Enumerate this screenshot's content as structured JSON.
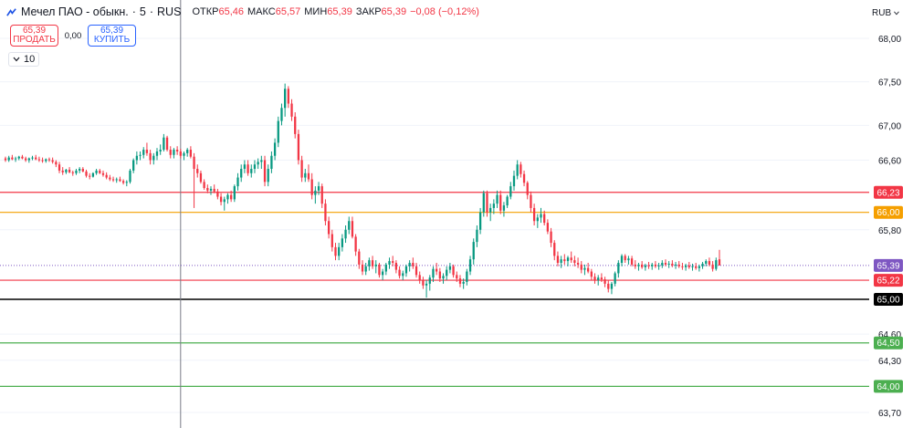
{
  "header": {
    "title": "Мечел ПАО - обыкн.",
    "interval": "5",
    "exchange": "RUS",
    "ohlc": [
      {
        "label": "ОТКР",
        "value": "65,46"
      },
      {
        "label": "МАКС",
        "value": "65,57"
      },
      {
        "label": "МИН",
        "value": "65,39"
      },
      {
        "label": "ЗАКР",
        "value": "65,39"
      },
      {
        "label": "",
        "value": "−0,08 (−0,12%)"
      }
    ]
  },
  "trade": {
    "sell_price": "65,39",
    "sell_label": "ПРОДАТЬ",
    "spread": "0,00",
    "buy_price": "65,39",
    "buy_label": "КУПИТЬ"
  },
  "volume_toggle": "10",
  "currency": "RUB",
  "colors": {
    "up": "#089981",
    "down": "#f23645",
    "level_red": "#f23645",
    "level_orange": "#f59f00",
    "level_black": "#000000",
    "level_green": "#4caf50",
    "price": "#7e57c2"
  },
  "chart_data": {
    "type": "candlestick",
    "y_scale": {
      "min": 63.7,
      "max": 68.0,
      "unit": "RUB"
    },
    "y_ticks": [
      "68,00",
      "67,50",
      "67,00",
      "66,60",
      "65,80",
      "64,60",
      "64,30",
      "63,70"
    ],
    "current_price": {
      "value": 65.39,
      "label": "65,39"
    },
    "levels": [
      {
        "value": 66.23,
        "label": "66,23",
        "color": "level_red"
      },
      {
        "value": 66.0,
        "label": "66,00",
        "color": "level_orange"
      },
      {
        "value": 65.22,
        "label": "65,22",
        "color": "level_red"
      },
      {
        "value": 65.0,
        "label": "65,00",
        "color": "level_black"
      },
      {
        "value": 64.5,
        "label": "64,50",
        "color": "level_green"
      },
      {
        "value": 64.0,
        "label": "64,00",
        "color": "level_green"
      }
    ],
    "crosshair_index": 52,
    "candles": [
      [
        66.62,
        66.64,
        66.58,
        66.6
      ],
      [
        66.6,
        66.65,
        66.58,
        66.63
      ],
      [
        66.63,
        66.66,
        66.6,
        66.61
      ],
      [
        66.61,
        66.64,
        66.58,
        66.62
      ],
      [
        66.62,
        66.65,
        66.6,
        66.64
      ],
      [
        66.64,
        66.66,
        66.61,
        66.62
      ],
      [
        66.62,
        66.64,
        66.58,
        66.6
      ],
      [
        66.6,
        66.63,
        66.57,
        66.62
      ],
      [
        66.62,
        66.65,
        66.6,
        66.63
      ],
      [
        66.63,
        66.66,
        66.6,
        66.61
      ],
      [
        66.61,
        66.64,
        66.58,
        66.6
      ],
      [
        66.6,
        66.63,
        66.57,
        66.59
      ],
      [
        66.59,
        66.62,
        66.57,
        66.61
      ],
      [
        66.61,
        66.63,
        66.58,
        66.6
      ],
      [
        66.6,
        66.63,
        66.56,
        66.58
      ],
      [
        66.58,
        66.6,
        66.52,
        66.55
      ],
      [
        66.55,
        66.58,
        66.45,
        66.48
      ],
      [
        66.48,
        66.52,
        66.43,
        66.46
      ],
      [
        66.46,
        66.5,
        66.44,
        66.49
      ],
      [
        66.49,
        66.52,
        66.45,
        66.46
      ],
      [
        66.46,
        66.48,
        66.42,
        66.45
      ],
      [
        66.45,
        66.5,
        66.43,
        66.48
      ],
      [
        66.48,
        66.52,
        66.45,
        66.5
      ],
      [
        66.5,
        66.52,
        66.46,
        66.47
      ],
      [
        66.47,
        66.49,
        66.4,
        66.42
      ],
      [
        66.42,
        66.45,
        66.38,
        66.41
      ],
      [
        66.41,
        66.46,
        66.4,
        66.45
      ],
      [
        66.45,
        66.5,
        66.43,
        66.48
      ],
      [
        66.48,
        66.5,
        66.44,
        66.45
      ],
      [
        66.45,
        66.48,
        66.41,
        66.43
      ],
      [
        66.43,
        66.46,
        66.38,
        66.4
      ],
      [
        66.4,
        66.43,
        66.36,
        66.38
      ],
      [
        66.38,
        66.41,
        66.35,
        66.37
      ],
      [
        66.37,
        66.4,
        66.34,
        66.38
      ],
      [
        66.38,
        66.41,
        66.35,
        66.36
      ],
      [
        66.36,
        66.38,
        66.32,
        66.34
      ],
      [
        66.34,
        66.37,
        66.3,
        66.35
      ],
      [
        66.35,
        66.5,
        66.33,
        66.48
      ],
      [
        66.48,
        66.62,
        66.45,
        66.6
      ],
      [
        66.6,
        66.7,
        66.55,
        66.65
      ],
      [
        66.65,
        66.7,
        66.6,
        66.66
      ],
      [
        66.66,
        66.75,
        66.62,
        66.72
      ],
      [
        66.72,
        66.8,
        66.65,
        66.68
      ],
      [
        66.68,
        66.72,
        66.55,
        66.6
      ],
      [
        66.6,
        66.68,
        66.55,
        66.65
      ],
      [
        66.65,
        66.74,
        66.6,
        66.7
      ],
      [
        66.7,
        66.78,
        66.66,
        66.72
      ],
      [
        66.72,
        66.9,
        66.7,
        66.86
      ],
      [
        66.86,
        66.88,
        66.7,
        66.72
      ],
      [
        66.72,
        66.76,
        66.62,
        66.66
      ],
      [
        66.66,
        66.74,
        66.62,
        66.72
      ],
      [
        66.72,
        66.76,
        66.66,
        66.7
      ],
      [
        66.7,
        66.73,
        66.62,
        66.65
      ],
      [
        66.65,
        66.7,
        66.6,
        66.68
      ],
      [
        66.68,
        66.74,
        66.64,
        66.72
      ],
      [
        66.72,
        66.76,
        66.62,
        66.64
      ],
      [
        66.64,
        66.68,
        66.05,
        66.5
      ],
      [
        66.5,
        66.55,
        66.4,
        66.45
      ],
      [
        66.45,
        66.48,
        66.33,
        66.35
      ],
      [
        66.35,
        66.38,
        66.26,
        66.28
      ],
      [
        66.28,
        66.32,
        66.22,
        66.25
      ],
      [
        66.25,
        66.3,
        66.2,
        66.27
      ],
      [
        66.27,
        66.32,
        66.22,
        66.24
      ],
      [
        66.24,
        66.27,
        66.15,
        66.18
      ],
      [
        66.18,
        66.22,
        66.08,
        66.12
      ],
      [
        66.12,
        66.18,
        66.02,
        66.15
      ],
      [
        66.15,
        66.22,
        66.1,
        66.2
      ],
      [
        66.2,
        66.25,
        66.12,
        66.15
      ],
      [
        66.15,
        66.32,
        66.12,
        66.3
      ],
      [
        66.3,
        66.45,
        66.25,
        66.4
      ],
      [
        66.4,
        66.55,
        66.35,
        66.5
      ],
      [
        66.5,
        66.6,
        66.45,
        66.55
      ],
      [
        66.55,
        66.6,
        66.42,
        66.45
      ],
      [
        66.45,
        66.55,
        66.4,
        66.5
      ],
      [
        66.5,
        66.6,
        66.45,
        66.55
      ],
      [
        66.55,
        66.62,
        66.5,
        66.58
      ],
      [
        66.58,
        66.65,
        66.5,
        66.6
      ],
      [
        66.6,
        66.65,
        66.3,
        66.35
      ],
      [
        66.35,
        66.55,
        66.3,
        66.5
      ],
      [
        66.5,
        66.7,
        66.45,
        66.65
      ],
      [
        66.65,
        66.85,
        66.6,
        66.8
      ],
      [
        66.8,
        67.1,
        66.75,
        67.05
      ],
      [
        67.05,
        67.25,
        67.0,
        67.2
      ],
      [
        67.2,
        67.48,
        67.1,
        67.42
      ],
      [
        67.42,
        67.45,
        67.2,
        67.25
      ],
      [
        67.25,
        67.3,
        67.05,
        67.1
      ],
      [
        67.1,
        67.15,
        66.85,
        66.9
      ],
      [
        66.9,
        66.95,
        66.55,
        66.6
      ],
      [
        66.6,
        66.65,
        66.35,
        66.4
      ],
      [
        66.4,
        66.5,
        66.35,
        66.45
      ],
      [
        66.45,
        66.55,
        66.35,
        66.38
      ],
      [
        66.38,
        66.45,
        66.15,
        66.2
      ],
      [
        66.2,
        66.3,
        66.1,
        66.25
      ],
      [
        66.25,
        66.35,
        66.2,
        66.3
      ],
      [
        66.3,
        66.33,
        66.05,
        66.1
      ],
      [
        66.1,
        66.15,
        65.85,
        65.9
      ],
      [
        65.9,
        65.95,
        65.7,
        65.75
      ],
      [
        65.75,
        65.8,
        65.55,
        65.6
      ],
      [
        65.6,
        65.65,
        65.45,
        65.5
      ],
      [
        65.5,
        65.65,
        65.45,
        65.6
      ],
      [
        65.6,
        65.75,
        65.55,
        65.7
      ],
      [
        65.7,
        65.85,
        65.65,
        65.8
      ],
      [
        65.8,
        65.95,
        65.75,
        65.9
      ],
      [
        65.9,
        65.95,
        65.7,
        65.72
      ],
      [
        65.72,
        65.75,
        65.5,
        65.55
      ],
      [
        65.55,
        65.58,
        65.35,
        65.4
      ],
      [
        65.4,
        65.45,
        65.28,
        65.32
      ],
      [
        65.32,
        65.42,
        65.28,
        65.38
      ],
      [
        65.38,
        65.48,
        65.33,
        65.45
      ],
      [
        65.45,
        65.5,
        65.35,
        65.38
      ],
      [
        65.38,
        65.45,
        65.3,
        65.4
      ],
      [
        65.4,
        65.42,
        65.25,
        65.28
      ],
      [
        65.28,
        65.35,
        65.22,
        65.32
      ],
      [
        65.32,
        65.42,
        65.28,
        65.4
      ],
      [
        65.4,
        65.48,
        65.35,
        65.44
      ],
      [
        65.44,
        65.5,
        65.38,
        65.42
      ],
      [
        65.42,
        65.45,
        65.3,
        65.34
      ],
      [
        65.34,
        65.38,
        65.24,
        65.27
      ],
      [
        65.27,
        65.33,
        65.22,
        65.3
      ],
      [
        65.3,
        65.4,
        65.26,
        65.38
      ],
      [
        65.38,
        65.45,
        65.32,
        65.42
      ],
      [
        65.42,
        65.48,
        65.35,
        65.38
      ],
      [
        65.38,
        65.42,
        65.25,
        65.28
      ],
      [
        65.28,
        65.32,
        65.18,
        65.22
      ],
      [
        65.22,
        65.26,
        65.12,
        65.16
      ],
      [
        65.16,
        65.22,
        65.02,
        65.18
      ],
      [
        65.18,
        65.28,
        65.1,
        65.25
      ],
      [
        65.25,
        65.38,
        65.2,
        65.35
      ],
      [
        65.35,
        65.42,
        65.28,
        65.32
      ],
      [
        65.32,
        65.36,
        65.2,
        65.24
      ],
      [
        65.24,
        65.3,
        65.18,
        65.27
      ],
      [
        65.27,
        65.38,
        65.22,
        65.34
      ],
      [
        65.34,
        65.42,
        65.3,
        65.38
      ],
      [
        65.38,
        65.4,
        65.25,
        65.28
      ],
      [
        65.28,
        65.32,
        65.2,
        65.24
      ],
      [
        65.24,
        65.28,
        65.14,
        65.18
      ],
      [
        65.18,
        65.24,
        65.12,
        65.2
      ],
      [
        65.2,
        65.35,
        65.16,
        65.32
      ],
      [
        65.32,
        65.5,
        65.28,
        65.46
      ],
      [
        65.46,
        65.7,
        65.4,
        65.66
      ],
      [
        65.66,
        65.85,
        65.6,
        65.8
      ],
      [
        65.8,
        66.05,
        65.75,
        66.0
      ],
      [
        66.0,
        66.25,
        65.95,
        66.22
      ],
      [
        66.22,
        66.25,
        65.95,
        66.0
      ],
      [
        66.0,
        66.1,
        65.9,
        66.05
      ],
      [
        66.05,
        66.15,
        65.98,
        66.1
      ],
      [
        66.1,
        66.25,
        66.05,
        66.2
      ],
      [
        66.2,
        66.25,
        65.98,
        66.02
      ],
      [
        66.02,
        66.12,
        65.95,
        66.08
      ],
      [
        66.08,
        66.2,
        66.05,
        66.18
      ],
      [
        66.18,
        66.35,
        66.15,
        66.3
      ],
      [
        66.3,
        66.48,
        66.25,
        66.42
      ],
      [
        66.42,
        66.6,
        66.38,
        66.55
      ],
      [
        66.55,
        66.58,
        66.4,
        66.44
      ],
      [
        66.44,
        66.48,
        66.3,
        66.34
      ],
      [
        66.34,
        66.36,
        66.15,
        66.2
      ],
      [
        66.2,
        66.24,
        66.0,
        66.05
      ],
      [
        66.05,
        66.1,
        65.85,
        65.9
      ],
      [
        65.9,
        65.98,
        65.82,
        65.94
      ],
      [
        65.94,
        66.05,
        65.88,
        65.98
      ],
      [
        65.98,
        66.02,
        65.85,
        65.88
      ],
      [
        65.88,
        65.92,
        65.75,
        65.78
      ],
      [
        65.78,
        65.82,
        65.6,
        65.65
      ],
      [
        65.65,
        65.68,
        65.45,
        65.5
      ],
      [
        65.5,
        65.55,
        65.38,
        65.42
      ],
      [
        65.42,
        65.5,
        65.36,
        65.46
      ],
      [
        65.46,
        65.52,
        65.4,
        65.44
      ],
      [
        65.44,
        65.5,
        65.38,
        65.48
      ],
      [
        65.48,
        65.55,
        65.42,
        65.45
      ],
      [
        65.45,
        65.5,
        65.38,
        65.42
      ],
      [
        65.42,
        65.48,
        65.36,
        65.4
      ],
      [
        65.4,
        65.44,
        65.3,
        65.34
      ],
      [
        65.34,
        65.4,
        65.28,
        65.36
      ],
      [
        65.36,
        65.42,
        65.3,
        65.32
      ],
      [
        65.32,
        65.35,
        65.22,
        65.26
      ],
      [
        65.26,
        65.3,
        65.18,
        65.22
      ],
      [
        65.22,
        65.28,
        65.16,
        65.25
      ],
      [
        65.25,
        65.3,
        65.2,
        65.23
      ],
      [
        65.23,
        65.26,
        65.14,
        65.18
      ],
      [
        65.18,
        65.22,
        65.08,
        65.12
      ],
      [
        65.12,
        65.2,
        65.06,
        65.18
      ],
      [
        65.18,
        65.32,
        65.15,
        65.3
      ],
      [
        65.3,
        65.45,
        65.25,
        65.42
      ],
      [
        65.42,
        65.52,
        65.38,
        65.5
      ],
      [
        65.5,
        65.52,
        65.42,
        65.45
      ],
      [
        65.45,
        65.5,
        65.4,
        65.47
      ],
      [
        65.47,
        65.5,
        65.38,
        65.4
      ],
      [
        65.4,
        65.45,
        65.35,
        65.38
      ],
      [
        65.38,
        65.42,
        65.33,
        65.4
      ],
      [
        65.4,
        65.44,
        65.35,
        65.37
      ],
      [
        65.37,
        65.41,
        65.33,
        65.39
      ],
      [
        65.39,
        65.43,
        65.35,
        65.38
      ],
      [
        65.38,
        65.42,
        65.34,
        65.4
      ],
      [
        65.4,
        65.44,
        65.36,
        65.38
      ],
      [
        65.38,
        65.42,
        65.34,
        65.39
      ],
      [
        65.39,
        65.45,
        65.36,
        65.42
      ],
      [
        65.42,
        65.46,
        65.38,
        65.4
      ],
      [
        65.4,
        65.44,
        65.36,
        65.41
      ],
      [
        65.41,
        65.45,
        65.37,
        65.39
      ],
      [
        65.39,
        65.43,
        65.35,
        65.4
      ],
      [
        65.4,
        65.44,
        65.36,
        65.38
      ],
      [
        65.38,
        65.42,
        65.34,
        65.37
      ],
      [
        65.37,
        65.41,
        65.33,
        65.39
      ],
      [
        65.39,
        65.43,
        65.35,
        65.37
      ],
      [
        65.37,
        65.41,
        65.33,
        65.38
      ],
      [
        65.38,
        65.42,
        65.34,
        65.36
      ],
      [
        65.36,
        65.4,
        65.32,
        65.38
      ],
      [
        65.38,
        65.43,
        65.35,
        65.41
      ],
      [
        65.41,
        65.46,
        65.38,
        65.44
      ],
      [
        65.44,
        65.48,
        65.38,
        65.4
      ],
      [
        65.4,
        65.44,
        65.32,
        65.35
      ],
      [
        65.35,
        65.48,
        65.33,
        65.45
      ],
      [
        65.46,
        65.57,
        65.39,
        65.39
      ]
    ]
  }
}
